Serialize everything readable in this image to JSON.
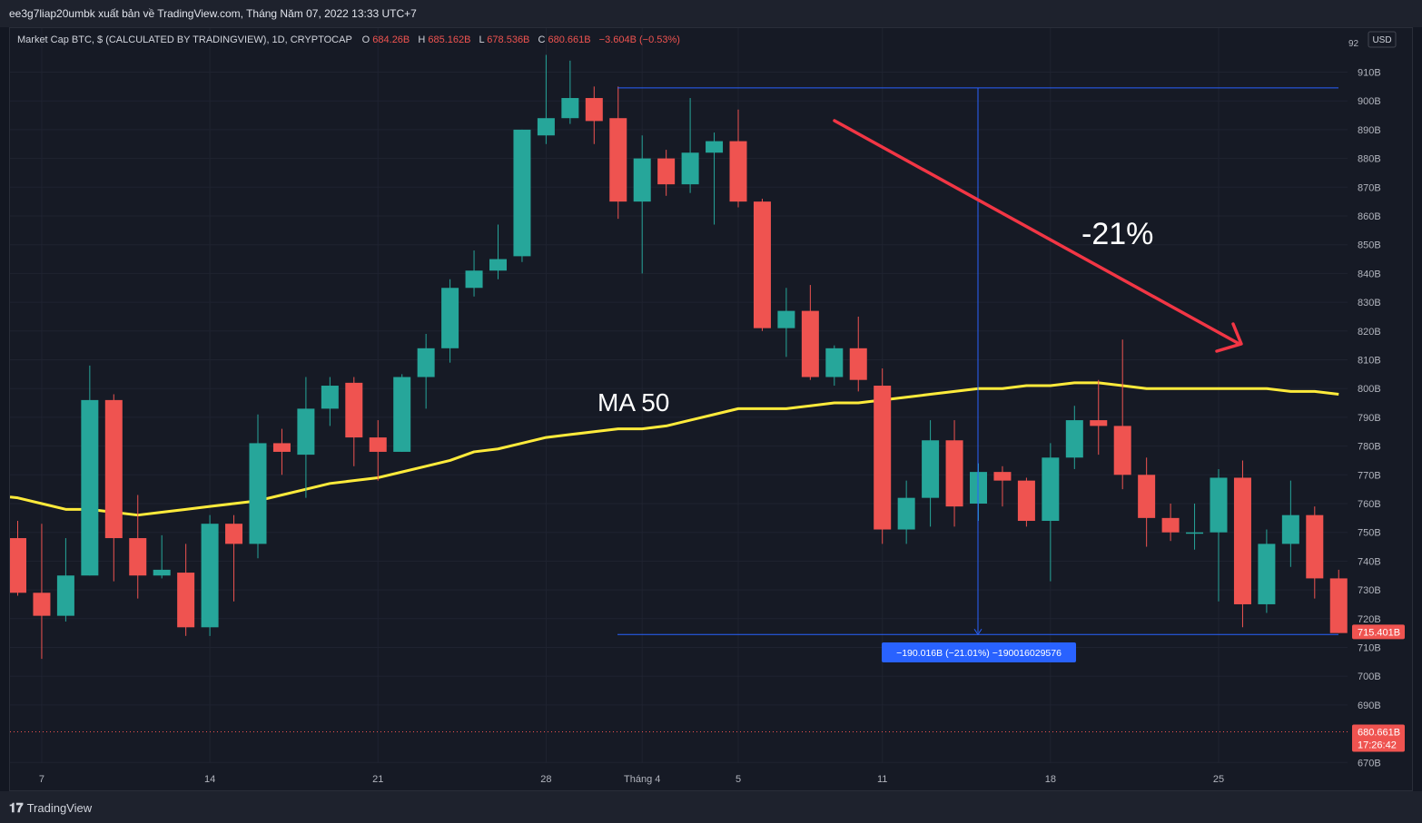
{
  "header": {
    "publish_note": "ee3g7liap20umbk xuất bản về TradingView.com, Tháng Năm 07, 2022 13:33 UTC+7"
  },
  "legend": {
    "symbol": "Market Cap BTC, $ (CALCULATED BY TRADINGVIEW), 1D, CRYPTOCAP",
    "open_label": "O",
    "open": "684.26B",
    "high_label": "H",
    "high": "685.162B",
    "low_label": "L",
    "low": "678.536B",
    "close_label": "C",
    "close": "680.661B",
    "change": "−3.604B (−0.53%)"
  },
  "price_axis": {
    "currency_button": "USD",
    "top_tick_partial": "92",
    "ticks": [
      "910B",
      "900B",
      "890B",
      "880B",
      "870B",
      "860B",
      "850B",
      "840B",
      "830B",
      "820B",
      "810B",
      "800B",
      "790B",
      "780B",
      "770B",
      "760B",
      "750B",
      "740B",
      "730B",
      "720B",
      "710B",
      "700B",
      "690B",
      "670B"
    ],
    "last_price_label": "715.401B",
    "current_price": "680.661B",
    "countdown": "17:26:42"
  },
  "time_axis": {
    "labels": [
      "7",
      "14",
      "21",
      "28",
      "Tháng 4",
      "5",
      "11",
      "18",
      "25"
    ]
  },
  "annotations": {
    "ma_label": "MA 50",
    "percent_drop": "-21%",
    "measure_label": "−190.016B (−21.01%) −190016029576"
  },
  "footer": {
    "brand": "TradingView",
    "logo_icon": "tradingview-logo-icon"
  },
  "colors": {
    "bull": "#26a69a",
    "bear": "#ef5350",
    "ma": "#ffeb3b",
    "arrow": "#f23645",
    "measure": "#2962ff",
    "background": "#161a25"
  },
  "chart_data": {
    "type": "candlestick",
    "y_unit": "B USD",
    "ylim": [
      665,
      920
    ],
    "grid": true,
    "x_ticks": [
      {
        "label": "7",
        "at": 1
      },
      {
        "label": "14",
        "at": 8
      },
      {
        "label": "21",
        "at": 15
      },
      {
        "label": "28",
        "at": 22
      },
      {
        "label": "Tháng 4",
        "at": 26
      },
      {
        "label": "5",
        "at": 30
      },
      {
        "label": "11",
        "at": 36
      },
      {
        "label": "18",
        "at": 43
      },
      {
        "label": "25",
        "at": 50
      }
    ],
    "candles": [
      {
        "o": 748,
        "h": 754,
        "l": 728,
        "c": 729
      },
      {
        "o": 729,
        "h": 753,
        "l": 706,
        "c": 721
      },
      {
        "o": 721,
        "h": 748,
        "l": 719,
        "c": 735
      },
      {
        "o": 735,
        "h": 808,
        "l": 735,
        "c": 796
      },
      {
        "o": 796,
        "h": 798,
        "l": 733,
        "c": 748
      },
      {
        "o": 748,
        "h": 763,
        "l": 727,
        "c": 735
      },
      {
        "o": 735,
        "h": 749,
        "l": 734,
        "c": 737
      },
      {
        "o": 736,
        "h": 746,
        "l": 714,
        "c": 717
      },
      {
        "o": 717,
        "h": 756,
        "l": 714,
        "c": 753
      },
      {
        "o": 753,
        "h": 756,
        "l": 726,
        "c": 746
      },
      {
        "o": 746,
        "h": 791,
        "l": 741,
        "c": 781
      },
      {
        "o": 781,
        "h": 786,
        "l": 770,
        "c": 778
      },
      {
        "o": 777,
        "h": 804,
        "l": 762,
        "c": 793
      },
      {
        "o": 793,
        "h": 804,
        "l": 787,
        "c": 801
      },
      {
        "o": 802,
        "h": 804,
        "l": 773,
        "c": 783
      },
      {
        "o": 783,
        "h": 789,
        "l": 768,
        "c": 778
      },
      {
        "o": 778,
        "h": 805,
        "l": 778,
        "c": 804
      },
      {
        "o": 804,
        "h": 819,
        "l": 793,
        "c": 814
      },
      {
        "o": 814,
        "h": 838,
        "l": 809,
        "c": 835
      },
      {
        "o": 835,
        "h": 848,
        "l": 832,
        "c": 841
      },
      {
        "o": 841,
        "h": 857,
        "l": 838,
        "c": 845
      },
      {
        "o": 846,
        "h": 890,
        "l": 844,
        "c": 890
      },
      {
        "o": 888,
        "h": 916,
        "l": 885,
        "c": 894
      },
      {
        "o": 894,
        "h": 914,
        "l": 892,
        "c": 901
      },
      {
        "o": 901,
        "h": 905,
        "l": 885,
        "c": 893
      },
      {
        "o": 894,
        "h": 905,
        "l": 859,
        "c": 865
      },
      {
        "o": 865,
        "h": 888,
        "l": 840,
        "c": 880
      },
      {
        "o": 880,
        "h": 883,
        "l": 867,
        "c": 871
      },
      {
        "o": 871,
        "h": 901,
        "l": 868,
        "c": 882
      },
      {
        "o": 882,
        "h": 889,
        "l": 857,
        "c": 886
      },
      {
        "o": 886,
        "h": 897,
        "l": 863,
        "c": 865
      },
      {
        "o": 865,
        "h": 866,
        "l": 820,
        "c": 821
      },
      {
        "o": 821,
        "h": 835,
        "l": 811,
        "c": 827
      },
      {
        "o": 827,
        "h": 836,
        "l": 803,
        "c": 804
      },
      {
        "o": 804,
        "h": 815,
        "l": 801,
        "c": 814
      },
      {
        "o": 814,
        "h": 825,
        "l": 799,
        "c": 803
      },
      {
        "o": 801,
        "h": 807,
        "l": 746,
        "c": 751
      },
      {
        "o": 751,
        "h": 768,
        "l": 746,
        "c": 762
      },
      {
        "o": 762,
        "h": 789,
        "l": 752,
        "c": 782
      },
      {
        "o": 782,
        "h": 789,
        "l": 752,
        "c": 759
      },
      {
        "o": 760,
        "h": 774,
        "l": 754,
        "c": 771
      },
      {
        "o": 771,
        "h": 773,
        "l": 759,
        "c": 768
      },
      {
        "o": 768,
        "h": 769,
        "l": 752,
        "c": 754
      },
      {
        "o": 754,
        "h": 781,
        "l": 733,
        "c": 776
      },
      {
        "o": 776,
        "h": 794,
        "l": 772,
        "c": 789
      },
      {
        "o": 789,
        "h": 803,
        "l": 777,
        "c": 787
      },
      {
        "o": 787,
        "h": 817,
        "l": 765,
        "c": 770
      },
      {
        "o": 770,
        "h": 776,
        "l": 745,
        "c": 755
      },
      {
        "o": 755,
        "h": 760,
        "l": 747,
        "c": 750
      },
      {
        "o": 750,
        "h": 760,
        "l": 744,
        "c": 750
      },
      {
        "o": 750,
        "h": 772,
        "l": 726,
        "c": 769
      },
      {
        "o": 769,
        "h": 775,
        "l": 717,
        "c": 725
      },
      {
        "o": 725,
        "h": 751,
        "l": 722,
        "c": 746
      },
      {
        "o": 746,
        "h": 768,
        "l": 738,
        "c": 756
      },
      {
        "o": 756,
        "h": 759,
        "l": 727,
        "c": 734
      },
      {
        "o": 734,
        "h": 737,
        "l": 715,
        "c": 715
      }
    ],
    "series": [
      {
        "name": "MA 50",
        "values": [
          762,
          760,
          758,
          758,
          757,
          756,
          757,
          758,
          759,
          760,
          761,
          763,
          765,
          767,
          768,
          769,
          771,
          773,
          775,
          778,
          779,
          781,
          783,
          784,
          785,
          786,
          786,
          787,
          789,
          791,
          793,
          793,
          793,
          794,
          795,
          795,
          796,
          797,
          798,
          799,
          800,
          800,
          801,
          801,
          802,
          802,
          801,
          800,
          800,
          800,
          800,
          800,
          800,
          799,
          799,
          798
        ]
      }
    ],
    "measure": {
      "from": 904.5,
      "to": 714.5,
      "change": "−190.016B",
      "percent": "−21.01%"
    },
    "current_price": 680.661,
    "last_marked_price": 715.401
  }
}
